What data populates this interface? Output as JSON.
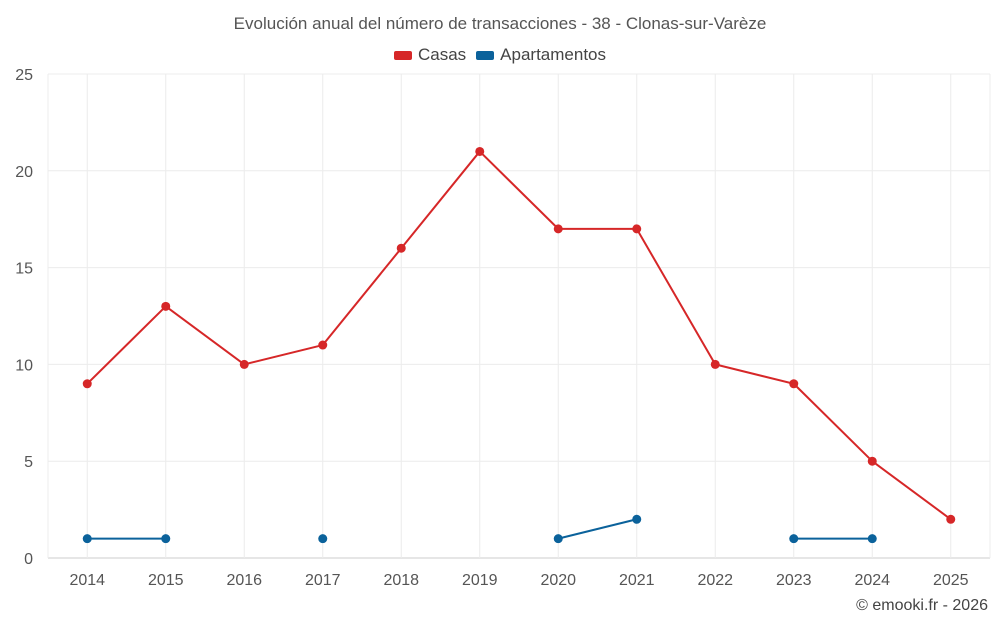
{
  "chart_data": {
    "type": "line",
    "title": "Evolución anual del número de transacciones - 38 - Clonas-sur-Varèze",
    "categories": [
      "2014",
      "2015",
      "2016",
      "2017",
      "2018",
      "2019",
      "2020",
      "2021",
      "2022",
      "2023",
      "2024",
      "2025"
    ],
    "series": [
      {
        "name": "Casas",
        "color": "#d62728",
        "values": [
          9,
          13,
          10,
          11,
          16,
          21,
          17,
          17,
          10,
          9,
          5,
          2
        ]
      },
      {
        "name": "Apartamentos",
        "color": "#0b629b",
        "values": [
          1,
          1,
          null,
          1,
          null,
          null,
          1,
          2,
          null,
          1,
          1,
          null
        ]
      }
    ],
    "ylim": [
      0,
      25
    ],
    "yticks": [
      0,
      5,
      10,
      15,
      20,
      25
    ],
    "xlabel": "",
    "ylabel": "",
    "grid": true,
    "legend": "top-center"
  },
  "watermark": "© emooki.fr - 2026"
}
